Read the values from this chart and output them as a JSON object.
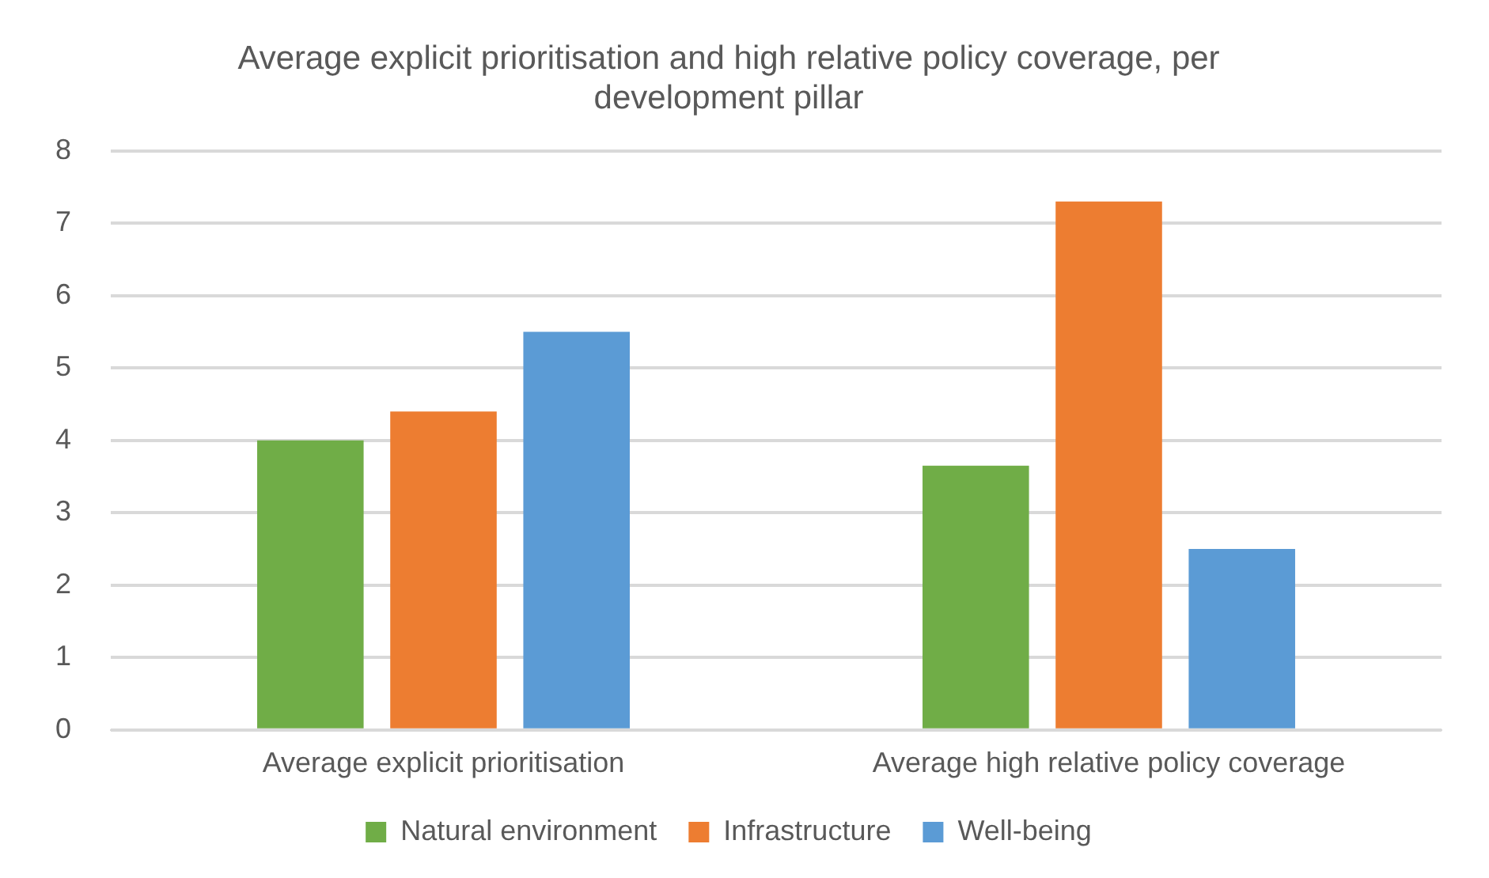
{
  "chart_data": {
    "type": "bar",
    "title": "Average explicit prioritisation and high relative policy coverage, per development pillar",
    "categories": [
      "Average explicit prioritisation",
      "Average high relative policy coverage"
    ],
    "series": [
      {
        "name": "Natural environment",
        "color": "#70ad47",
        "values": [
          4.0,
          3.65
        ]
      },
      {
        "name": "Infrastructure",
        "color": "#ed7d31",
        "values": [
          4.4,
          7.3
        ]
      },
      {
        "name": "Well-being",
        "color": "#5b9bd5",
        "values": [
          5.5,
          2.5
        ]
      }
    ],
    "ylim": [
      0,
      8
    ],
    "yticks": [
      0,
      1,
      2,
      3,
      4,
      5,
      6,
      7,
      8
    ],
    "grid": "y",
    "legend": "bottom"
  }
}
